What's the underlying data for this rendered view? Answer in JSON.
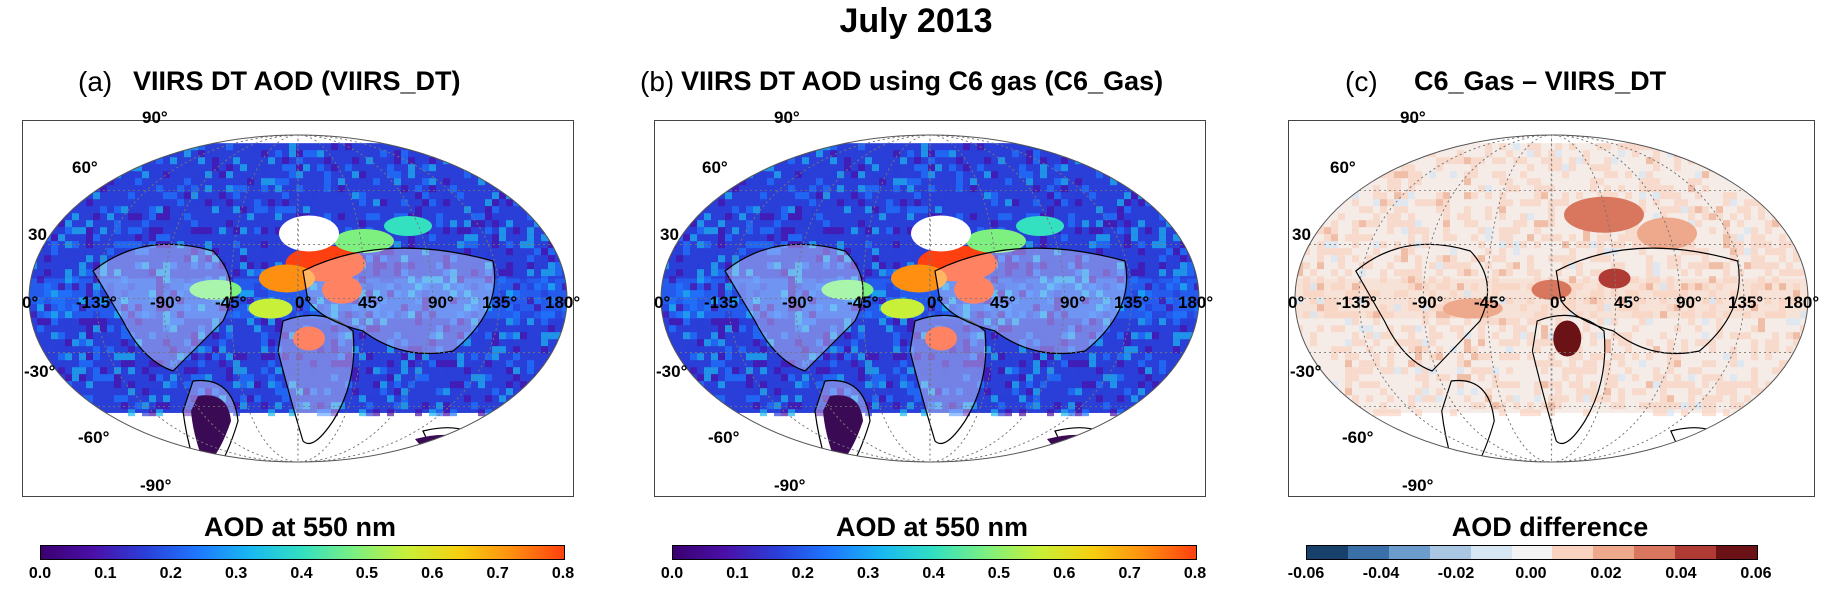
{
  "figure_title": "July 2013",
  "colors": {
    "aod_scale": [
      "#3b0070",
      "#4a10a8",
      "#2a3fd8",
      "#1e78ff",
      "#19b8f0",
      "#33e0c0",
      "#7df080",
      "#c8f038",
      "#f5d010",
      "#ff8f10",
      "#ff4010"
    ],
    "diff_scale": [
      "#17406b",
      "#3a6fa8",
      "#6c9ccb",
      "#a9c7e3",
      "#d6e6f3",
      "#f3f3f3",
      "#f9d3c0",
      "#eea98c",
      "#d8765e",
      "#b03a34",
      "#6a1215"
    ],
    "coast": "#000000",
    "grid": "#777777"
  },
  "panels": [
    {
      "letter": "(a)",
      "title": "VIIRS DT AOD (VIIRS_DT)",
      "colorbar_title": "AOD at 550 nm",
      "colorbar_ticks": [
        "0.0",
        "0.1",
        "0.2",
        "0.3",
        "0.4",
        "0.5",
        "0.6",
        "0.7",
        "0.8"
      ],
      "grid_labels": {
        "lat": [
          "90°",
          "60°",
          "30",
          "0°",
          "-30°",
          "-60°",
          "-90°"
        ],
        "lon": [
          "-135°",
          "-90°",
          "-45°",
          "0°",
          "45°",
          "90°",
          "135°",
          "180°"
        ]
      }
    },
    {
      "letter": "(b)",
      "title": "VIIRS DT AOD using C6 gas (C6_Gas)",
      "colorbar_title": "AOD at 550 nm",
      "colorbar_ticks": [
        "0.0",
        "0.1",
        "0.2",
        "0.3",
        "0.4",
        "0.5",
        "0.6",
        "0.7",
        "0.8"
      ],
      "grid_labels": {
        "lat": [
          "90°",
          "60°",
          "30",
          "0°",
          "-30°",
          "-60°",
          "-90°"
        ],
        "lon": [
          "-135",
          "-90°",
          "-45°",
          "0°",
          "45°",
          "90°",
          "135°",
          "180°"
        ]
      }
    },
    {
      "letter": "(c)",
      "title": "C6_Gas – VIIRS_DT",
      "colorbar_title": "AOD difference",
      "colorbar_ticks": [
        "-0.06",
        "-0.04",
        "-0.02",
        "0.00",
        "0.02",
        "0.04",
        "0.06"
      ],
      "grid_labels": {
        "lat": [
          "90°",
          "60°",
          "30",
          "0°",
          "-30°",
          "-60°",
          "-90°"
        ],
        "lon": [
          "-135°",
          "-90°",
          "-45°",
          "0°",
          "45°",
          "90°",
          "135°",
          "180°"
        ]
      }
    }
  ]
}
